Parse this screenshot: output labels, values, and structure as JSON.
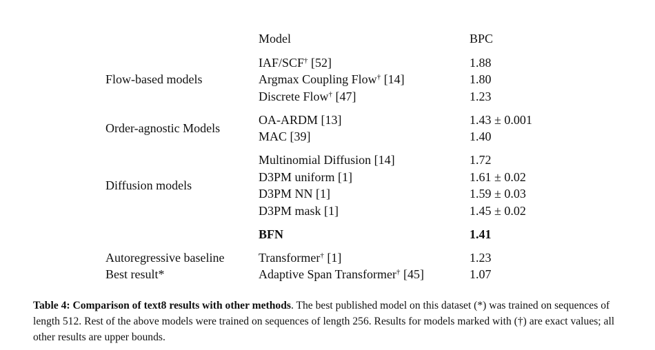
{
  "table": {
    "header": {
      "model": "Model",
      "bpc": "BPC"
    },
    "groups": [
      {
        "label": "Flow-based models",
        "rows": [
          {
            "name": "IAF/SCF",
            "sup": "†",
            "ref": "[52]",
            "bpc": "1.88"
          },
          {
            "name": "Argmax Coupling Flow",
            "sup": "†",
            "ref": "[14]",
            "bpc": "1.80"
          },
          {
            "name": "Discrete Flow",
            "sup": "†",
            "ref": "[47]",
            "bpc": "1.23"
          }
        ]
      },
      {
        "label": "Order-agnostic Models",
        "rows": [
          {
            "name": "OA-ARDM",
            "ref": "[13]",
            "bpc": "1.43 ± 0.001"
          },
          {
            "name": "MAC",
            "ref": "[39]",
            "bpc": "1.40"
          }
        ]
      },
      {
        "label": "Diffusion models",
        "rows": [
          {
            "name": "Multinomial Diffusion",
            "ref": "[14]",
            "bpc": "1.72"
          },
          {
            "name": "D3PM uniform",
            "ref": "[1]",
            "bpc": "1.61 ± 0.02"
          },
          {
            "name": "D3PM NN",
            "ref": "[1]",
            "bpc": "1.59 ± 0.03"
          },
          {
            "name": "D3PM mask",
            "ref": "[1]",
            "bpc": "1.45 ± 0.02"
          }
        ]
      },
      {
        "emphasis": true,
        "rows": [
          {
            "name": "BFN",
            "bpc": "1.41"
          }
        ]
      },
      {
        "rows": [
          {
            "label": "Autoregressive baseline",
            "name": "Transformer",
            "sup": "†",
            "ref": "[1]",
            "bpc": "1.23"
          },
          {
            "label": "Best result*",
            "name": "Adaptive Span Transformer",
            "sup": "†",
            "ref": "[45]",
            "bpc": "1.07"
          }
        ]
      }
    ]
  },
  "caption": {
    "title": "Table 4: Comparison of text8 results with other methods",
    "text": ". The best published model on this dataset (*) was trained on sequences of length 512. Rest of the above models were trained on sequences of length 256. Results for models marked with (†) are exact values; all other results are upper bounds."
  }
}
